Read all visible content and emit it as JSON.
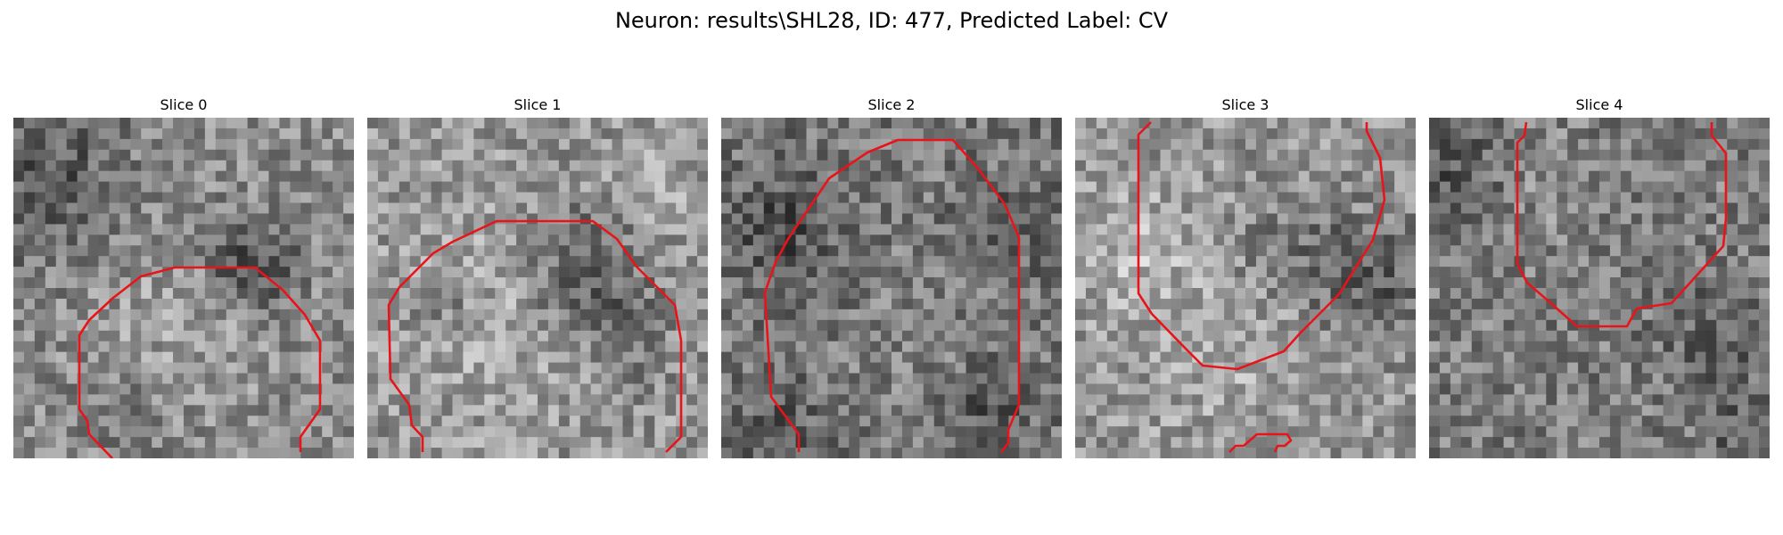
{
  "figure": {
    "title": "Neuron: results\\SHL28, ID: 477, Predicted Label: CV"
  },
  "colors": {
    "contour": "#e8141a",
    "background": "#ffffff",
    "colormap": "gray"
  },
  "panels": [
    {
      "title": "Slice 0"
    },
    {
      "title": "Slice 1"
    },
    {
      "title": "Slice 2"
    },
    {
      "title": "Slice 3"
    },
    {
      "title": "Slice 4"
    }
  ]
}
